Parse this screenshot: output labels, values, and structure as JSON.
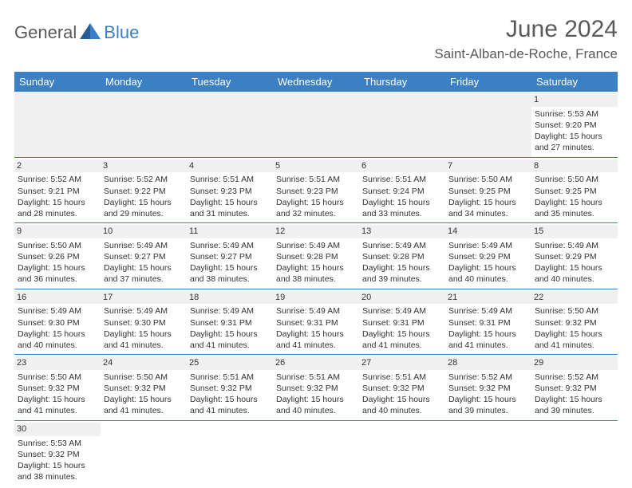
{
  "brand": {
    "part1": "General",
    "part2": "Blue"
  },
  "title": "June 2024",
  "location": "Saint-Alban-de-Roche, France",
  "colors": {
    "header_bg": "#3b7fc4",
    "header_text": "#ffffff",
    "row_divider": "#3b7fc4",
    "daynum_bg": "#f0f0f0",
    "empty_bg": "#f0f0f0",
    "text": "#333333",
    "brand_gray": "#5a5a5a",
    "brand_blue": "#3b7fc4",
    "page_bg": "#ffffff"
  },
  "daysOfWeek": [
    "Sunday",
    "Monday",
    "Tuesday",
    "Wednesday",
    "Thursday",
    "Friday",
    "Saturday"
  ],
  "weeks": [
    [
      null,
      null,
      null,
      null,
      null,
      null,
      {
        "n": "1",
        "sr": "Sunrise: 5:53 AM",
        "ss": "Sunset: 9:20 PM",
        "d1": "Daylight: 15 hours",
        "d2": "and 27 minutes."
      }
    ],
    [
      {
        "n": "2",
        "sr": "Sunrise: 5:52 AM",
        "ss": "Sunset: 9:21 PM",
        "d1": "Daylight: 15 hours",
        "d2": "and 28 minutes."
      },
      {
        "n": "3",
        "sr": "Sunrise: 5:52 AM",
        "ss": "Sunset: 9:22 PM",
        "d1": "Daylight: 15 hours",
        "d2": "and 29 minutes."
      },
      {
        "n": "4",
        "sr": "Sunrise: 5:51 AM",
        "ss": "Sunset: 9:23 PM",
        "d1": "Daylight: 15 hours",
        "d2": "and 31 minutes."
      },
      {
        "n": "5",
        "sr": "Sunrise: 5:51 AM",
        "ss": "Sunset: 9:23 PM",
        "d1": "Daylight: 15 hours",
        "d2": "and 32 minutes."
      },
      {
        "n": "6",
        "sr": "Sunrise: 5:51 AM",
        "ss": "Sunset: 9:24 PM",
        "d1": "Daylight: 15 hours",
        "d2": "and 33 minutes."
      },
      {
        "n": "7",
        "sr": "Sunrise: 5:50 AM",
        "ss": "Sunset: 9:25 PM",
        "d1": "Daylight: 15 hours",
        "d2": "and 34 minutes."
      },
      {
        "n": "8",
        "sr": "Sunrise: 5:50 AM",
        "ss": "Sunset: 9:25 PM",
        "d1": "Daylight: 15 hours",
        "d2": "and 35 minutes."
      }
    ],
    [
      {
        "n": "9",
        "sr": "Sunrise: 5:50 AM",
        "ss": "Sunset: 9:26 PM",
        "d1": "Daylight: 15 hours",
        "d2": "and 36 minutes."
      },
      {
        "n": "10",
        "sr": "Sunrise: 5:49 AM",
        "ss": "Sunset: 9:27 PM",
        "d1": "Daylight: 15 hours",
        "d2": "and 37 minutes."
      },
      {
        "n": "11",
        "sr": "Sunrise: 5:49 AM",
        "ss": "Sunset: 9:27 PM",
        "d1": "Daylight: 15 hours",
        "d2": "and 38 minutes."
      },
      {
        "n": "12",
        "sr": "Sunrise: 5:49 AM",
        "ss": "Sunset: 9:28 PM",
        "d1": "Daylight: 15 hours",
        "d2": "and 38 minutes."
      },
      {
        "n": "13",
        "sr": "Sunrise: 5:49 AM",
        "ss": "Sunset: 9:28 PM",
        "d1": "Daylight: 15 hours",
        "d2": "and 39 minutes."
      },
      {
        "n": "14",
        "sr": "Sunrise: 5:49 AM",
        "ss": "Sunset: 9:29 PM",
        "d1": "Daylight: 15 hours",
        "d2": "and 40 minutes."
      },
      {
        "n": "15",
        "sr": "Sunrise: 5:49 AM",
        "ss": "Sunset: 9:29 PM",
        "d1": "Daylight: 15 hours",
        "d2": "and 40 minutes."
      }
    ],
    [
      {
        "n": "16",
        "sr": "Sunrise: 5:49 AM",
        "ss": "Sunset: 9:30 PM",
        "d1": "Daylight: 15 hours",
        "d2": "and 40 minutes."
      },
      {
        "n": "17",
        "sr": "Sunrise: 5:49 AM",
        "ss": "Sunset: 9:30 PM",
        "d1": "Daylight: 15 hours",
        "d2": "and 41 minutes."
      },
      {
        "n": "18",
        "sr": "Sunrise: 5:49 AM",
        "ss": "Sunset: 9:31 PM",
        "d1": "Daylight: 15 hours",
        "d2": "and 41 minutes."
      },
      {
        "n": "19",
        "sr": "Sunrise: 5:49 AM",
        "ss": "Sunset: 9:31 PM",
        "d1": "Daylight: 15 hours",
        "d2": "and 41 minutes."
      },
      {
        "n": "20",
        "sr": "Sunrise: 5:49 AM",
        "ss": "Sunset: 9:31 PM",
        "d1": "Daylight: 15 hours",
        "d2": "and 41 minutes."
      },
      {
        "n": "21",
        "sr": "Sunrise: 5:49 AM",
        "ss": "Sunset: 9:31 PM",
        "d1": "Daylight: 15 hours",
        "d2": "and 41 minutes."
      },
      {
        "n": "22",
        "sr": "Sunrise: 5:50 AM",
        "ss": "Sunset: 9:32 PM",
        "d1": "Daylight: 15 hours",
        "d2": "and 41 minutes."
      }
    ],
    [
      {
        "n": "23",
        "sr": "Sunrise: 5:50 AM",
        "ss": "Sunset: 9:32 PM",
        "d1": "Daylight: 15 hours",
        "d2": "and 41 minutes."
      },
      {
        "n": "24",
        "sr": "Sunrise: 5:50 AM",
        "ss": "Sunset: 9:32 PM",
        "d1": "Daylight: 15 hours",
        "d2": "and 41 minutes."
      },
      {
        "n": "25",
        "sr": "Sunrise: 5:51 AM",
        "ss": "Sunset: 9:32 PM",
        "d1": "Daylight: 15 hours",
        "d2": "and 41 minutes."
      },
      {
        "n": "26",
        "sr": "Sunrise: 5:51 AM",
        "ss": "Sunset: 9:32 PM",
        "d1": "Daylight: 15 hours",
        "d2": "and 40 minutes."
      },
      {
        "n": "27",
        "sr": "Sunrise: 5:51 AM",
        "ss": "Sunset: 9:32 PM",
        "d1": "Daylight: 15 hours",
        "d2": "and 40 minutes."
      },
      {
        "n": "28",
        "sr": "Sunrise: 5:52 AM",
        "ss": "Sunset: 9:32 PM",
        "d1": "Daylight: 15 hours",
        "d2": "and 39 minutes."
      },
      {
        "n": "29",
        "sr": "Sunrise: 5:52 AM",
        "ss": "Sunset: 9:32 PM",
        "d1": "Daylight: 15 hours",
        "d2": "and 39 minutes."
      }
    ],
    [
      {
        "n": "30",
        "sr": "Sunrise: 5:53 AM",
        "ss": "Sunset: 9:32 PM",
        "d1": "Daylight: 15 hours",
        "d2": "and 38 minutes."
      },
      null,
      null,
      null,
      null,
      null,
      null
    ]
  ]
}
